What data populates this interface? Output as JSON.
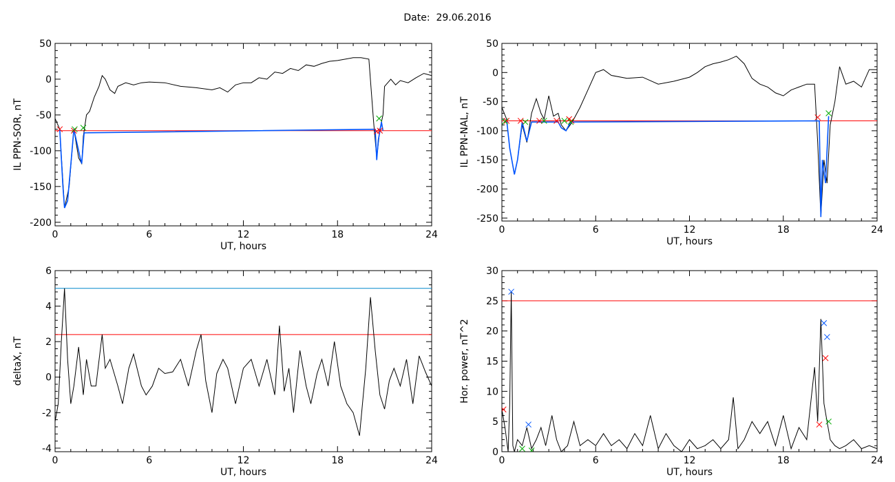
{
  "header": {
    "date_label": "Date:  29.06.2016"
  },
  "chart_data": [
    {
      "type": "line",
      "xlabel": "UT, hours",
      "ylabel": "IL PPN-SOR, nT",
      "xlim": [
        0,
        24
      ],
      "ylim": [
        -205,
        50
      ],
      "xticks": [
        0,
        6,
        12,
        18,
        24
      ],
      "yticks": [
        -200,
        -150,
        -100,
        -50,
        0,
        50
      ],
      "threshold_lines": [
        {
          "y": -72,
          "color": "#ff0000"
        }
      ],
      "series": [
        {
          "color": "#000000",
          "x": [
            0,
            0.3,
            0.6,
            0.9,
            1.2,
            1.5,
            1.7,
            1.8,
            2.0,
            2.2,
            2.5,
            2.8,
            3.0,
            3.2,
            3.5,
            3.8,
            4.0,
            4.5,
            5.0,
            5.5,
            6.0,
            7.0,
            8.0,
            9.0,
            10.0,
            10.5,
            11.0,
            11.5,
            12.0,
            12.5,
            13.0,
            13.5,
            14.0,
            14.5,
            15.0,
            15.5,
            16.0,
            16.5,
            17.0,
            17.5,
            18.0,
            18.5,
            19.0,
            19.5,
            20.0,
            20.3,
            20.5,
            20.7,
            20.9,
            21.0,
            21.2,
            21.4,
            21.7,
            22.0,
            22.5,
            23.0,
            23.5,
            24.0
          ],
          "y": [
            -55,
            -70,
            -180,
            -150,
            -70,
            -110,
            -118,
            -80,
            -50,
            -45,
            -25,
            -10,
            5,
            0,
            -15,
            -20,
            -10,
            -5,
            -8,
            -5,
            -4,
            -5,
            -10,
            -12,
            -15,
            -12,
            -18,
            -8,
            -5,
            -5,
            2,
            0,
            10,
            8,
            15,
            12,
            20,
            18,
            22,
            25,
            26,
            28,
            30,
            30,
            28,
            -60,
            -110,
            -70,
            -50,
            -10,
            -5,
            0,
            -8,
            -2,
            -5,
            2,
            8,
            5
          ]
        },
        {
          "color": "#0055ff",
          "x": [
            0.3,
            0.5,
            0.6,
            0.8,
            1.0,
            1.2,
            1.4,
            1.6,
            1.7,
            1.85,
            20.4,
            20.5,
            20.6,
            20.8,
            20.9
          ],
          "y": [
            -70,
            -150,
            -180,
            -170,
            -120,
            -70,
            -90,
            -110,
            -118,
            -75,
            -70,
            -113,
            -85,
            -60,
            -72
          ]
        }
      ],
      "markers": [
        {
          "x": 0.3,
          "y": -70,
          "color": "#ff0000"
        },
        {
          "x": 1.2,
          "y": -72,
          "color": "#ff0000"
        },
        {
          "x": 1.25,
          "y": -70,
          "color": "#00aa00"
        },
        {
          "x": 1.8,
          "y": -68,
          "color": "#00aa00"
        },
        {
          "x": 20.5,
          "y": -73,
          "color": "#ff0000"
        },
        {
          "x": 20.7,
          "y": -72,
          "color": "#ff0000"
        },
        {
          "x": 20.65,
          "y": -55,
          "color": "#00aa00"
        }
      ]
    },
    {
      "type": "line",
      "xlabel": "UT, hours",
      "ylabel": "IL PPN-NAL, nT",
      "xlim": [
        0,
        24
      ],
      "ylim": [
        -255,
        50
      ],
      "xticks": [
        0,
        6,
        12,
        18,
        24
      ],
      "yticks": [
        -250,
        -200,
        -150,
        -100,
        -50,
        0,
        50
      ],
      "threshold_lines": [
        {
          "y": -83,
          "color": "#ff0000"
        }
      ],
      "series": [
        {
          "color": "#000000",
          "x": [
            0,
            0.3,
            0.5,
            0.8,
            1.0,
            1.3,
            1.6,
            1.9,
            2.2,
            2.5,
            2.7,
            3.0,
            3.3,
            3.6,
            3.8,
            4.1,
            4.5,
            5.0,
            5.5,
            6.0,
            6.5,
            7.0,
            8.0,
            9.0,
            10.0,
            11.0,
            12.0,
            12.5,
            13.0,
            13.5,
            14.0,
            14.5,
            15.0,
            15.5,
            16.0,
            16.5,
            17.0,
            17.5,
            18.0,
            18.5,
            19.0,
            19.5,
            20.0,
            20.2,
            20.4,
            20.6,
            20.8,
            21.0,
            21.3,
            21.6,
            22.0,
            22.5,
            23.0,
            23.5,
            24.0
          ],
          "y": [
            -60,
            -80,
            -130,
            -175,
            -150,
            -90,
            -120,
            -70,
            -45,
            -70,
            -80,
            -40,
            -75,
            -70,
            -90,
            -100,
            -85,
            -60,
            -30,
            0,
            5,
            -5,
            -10,
            -8,
            -20,
            -15,
            -8,
            0,
            10,
            15,
            18,
            22,
            28,
            15,
            -10,
            -20,
            -25,
            -35,
            -40,
            -30,
            -25,
            -20,
            -20,
            -120,
            -248,
            -150,
            -190,
            -90,
            -50,
            10,
            -20,
            -15,
            -25,
            5,
            5
          ]
        },
        {
          "color": "#0055ff",
          "x": [
            0.3,
            0.5,
            0.8,
            1.0,
            1.3,
            1.6,
            1.9,
            3.6,
            3.8,
            4.1,
            4.4,
            20.3,
            20.4,
            20.5,
            20.7,
            20.9
          ],
          "y": [
            -80,
            -130,
            -175,
            -150,
            -85,
            -118,
            -85,
            -85,
            -95,
            -100,
            -85,
            -83,
            -248,
            -150,
            -190,
            -75
          ]
        }
      ],
      "markers": [
        {
          "x": 0.3,
          "y": -83,
          "color": "#ff0000"
        },
        {
          "x": 1.2,
          "y": -83,
          "color": "#ff0000"
        },
        {
          "x": 2.4,
          "y": -83,
          "color": "#ff0000"
        },
        {
          "x": 3.5,
          "y": -83,
          "color": "#ff0000"
        },
        {
          "x": 4.3,
          "y": -80,
          "color": "#ff0000"
        },
        {
          "x": 4.45,
          "y": -83,
          "color": "#ff0000"
        },
        {
          "x": 0.2,
          "y": -84,
          "color": "#00aa00"
        },
        {
          "x": 1.5,
          "y": -85,
          "color": "#00aa00"
        },
        {
          "x": 2.7,
          "y": -83,
          "color": "#00aa00"
        },
        {
          "x": 4.0,
          "y": -83,
          "color": "#00aa00"
        },
        {
          "x": 4.4,
          "y": -85,
          "color": "#00aa00"
        },
        {
          "x": 20.2,
          "y": -77,
          "color": "#ff0000"
        },
        {
          "x": 20.9,
          "y": -70,
          "color": "#00aa00"
        }
      ]
    },
    {
      "type": "line",
      "xlabel": "UT, hours",
      "ylabel": "deltaX, nT",
      "xlim": [
        0,
        24
      ],
      "ylim": [
        -4.2,
        6
      ],
      "xticks": [
        0,
        6,
        12,
        18,
        24
      ],
      "yticks": [
        -4,
        -2,
        0,
        2,
        4,
        6
      ],
      "threshold_lines": [
        {
          "y": 5.0,
          "color": "#0088cc"
        },
        {
          "y": 2.4,
          "color": "#ff0000"
        }
      ],
      "series": [
        {
          "color": "#000000",
          "x": [
            0,
            0.2,
            0.4,
            0.6,
            0.8,
            1.0,
            1.2,
            1.5,
            1.8,
            2.0,
            2.3,
            2.6,
            3.0,
            3.2,
            3.5,
            4.0,
            4.3,
            4.7,
            5.0,
            5.5,
            5.8,
            6.2,
            6.6,
            7.0,
            7.5,
            8.0,
            8.5,
            9.0,
            9.3,
            9.6,
            10.0,
            10.3,
            10.7,
            11.0,
            11.5,
            12.0,
            12.5,
            13.0,
            13.5,
            14.0,
            14.3,
            14.6,
            14.9,
            15.2,
            15.6,
            16.0,
            16.3,
            16.7,
            17.0,
            17.4,
            17.8,
            18.2,
            18.6,
            19.0,
            19.4,
            19.8,
            20.1,
            20.4,
            20.7,
            21.0,
            21.3,
            21.6,
            22.0,
            22.4,
            22.8,
            23.2,
            23.6,
            24.0
          ],
          "y": [
            -2.5,
            -1.5,
            2.0,
            5.0,
            1.0,
            -1.5,
            -0.5,
            1.7,
            -1.0,
            1.0,
            -0.5,
            -0.5,
            2.4,
            0.5,
            1.0,
            -0.5,
            -1.5,
            0.5,
            1.3,
            -0.5,
            -1.0,
            -0.5,
            0.5,
            0.2,
            0.3,
            1.0,
            -0.5,
            1.5,
            2.4,
            -0.2,
            -2.0,
            0.2,
            1.0,
            0.5,
            -1.5,
            0.5,
            1.0,
            -0.5,
            1.0,
            -1.0,
            2.9,
            -0.8,
            0.5,
            -2.0,
            1.5,
            -0.5,
            -1.5,
            0.2,
            1.0,
            -0.5,
            2.0,
            -0.5,
            -1.5,
            -2.0,
            -3.3,
            0.5,
            4.5,
            1.5,
            -1.0,
            -1.8,
            -0.2,
            0.5,
            -0.5,
            1.0,
            -1.5,
            1.2,
            0.3,
            -0.5
          ]
        }
      ],
      "markers": []
    },
    {
      "type": "line",
      "xlabel": "UT, hours",
      "ylabel": "Hor. power, nT^2",
      "xlim": [
        0,
        24
      ],
      "ylim": [
        0,
        30
      ],
      "xticks": [
        0,
        6,
        12,
        18,
        24
      ],
      "yticks": [
        0,
        5,
        10,
        15,
        20,
        25,
        30
      ],
      "threshold_lines": [
        {
          "y": 25,
          "color": "#ff0000"
        }
      ],
      "series": [
        {
          "color": "#000000",
          "x": [
            0,
            0.2,
            0.4,
            0.5,
            0.6,
            0.7,
            0.8,
            1.0,
            1.3,
            1.6,
            1.9,
            2.2,
            2.5,
            2.8,
            3.2,
            3.5,
            3.8,
            4.2,
            4.6,
            5.0,
            5.5,
            6.0,
            6.5,
            7.0,
            7.5,
            8.0,
            8.5,
            9.0,
            9.5,
            10.0,
            10.5,
            11.0,
            11.5,
            12.0,
            12.5,
            13.0,
            13.5,
            14.0,
            14.5,
            14.8,
            15.1,
            15.5,
            16.0,
            16.5,
            17.0,
            17.5,
            18.0,
            18.5,
            19.0,
            19.5,
            20.0,
            20.2,
            20.4,
            20.6,
            20.8,
            21.0,
            21.3,
            21.6,
            22.0,
            22.5,
            23.0,
            23.5,
            24.0
          ],
          "y": [
            7,
            4,
            0,
            8,
            26.5,
            1,
            0,
            2,
            1,
            4,
            0.5,
            2,
            4,
            1,
            6,
            2,
            0,
            1,
            5,
            1,
            2,
            1,
            3,
            1,
            2,
            0.5,
            3,
            1,
            6,
            0.5,
            3,
            1,
            0,
            2,
            0.5,
            1,
            2,
            0.5,
            2,
            9,
            0.5,
            2,
            5,
            3,
            5,
            1,
            6,
            0.5,
            4,
            2,
            14,
            5,
            22,
            8,
            5,
            2,
            1,
            0.5,
            1,
            2,
            0.5,
            1,
            0.5
          ]
        }
      ],
      "markers": [
        {
          "x": 0.6,
          "y": 26.5,
          "color": "#0055ff"
        },
        {
          "x": 1.7,
          "y": 4.5,
          "color": "#0055ff"
        },
        {
          "x": 20.6,
          "y": 21.3,
          "color": "#0055ff"
        },
        {
          "x": 20.8,
          "y": 19,
          "color": "#0055ff"
        },
        {
          "x": 0.1,
          "y": 7,
          "color": "#ff0000"
        },
        {
          "x": 20.3,
          "y": 4.5,
          "color": "#ff0000"
        },
        {
          "x": 20.7,
          "y": 15.5,
          "color": "#ff0000"
        },
        {
          "x": 1.3,
          "y": 0.5,
          "color": "#00aa00"
        },
        {
          "x": 1.9,
          "y": 0.2,
          "color": "#00aa00"
        },
        {
          "x": 20.9,
          "y": 5,
          "color": "#00aa00"
        }
      ]
    }
  ]
}
